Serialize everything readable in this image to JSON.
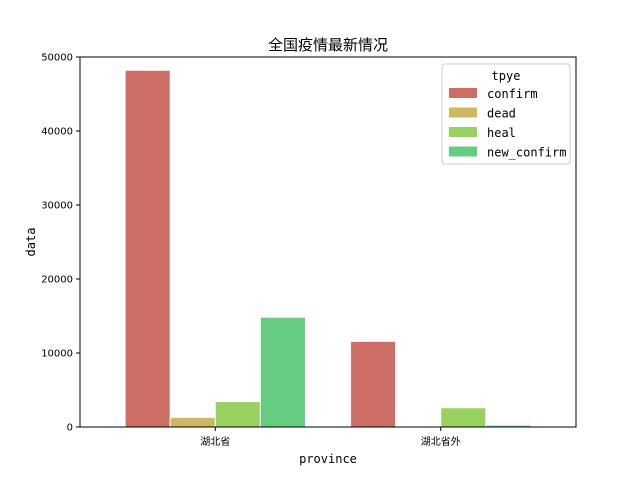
{
  "chart_data": {
    "type": "bar",
    "title": "全国疫情最新情况",
    "xlabel": "province",
    "ylabel": "data",
    "categories": [
      "湖北省",
      "湖北省外"
    ],
    "ylim": [
      0,
      50000
    ],
    "yticks": [
      0,
      10000,
      20000,
      30000,
      40000,
      50000
    ],
    "grid": false,
    "legend": {
      "title": "tpye",
      "placement": "top-right"
    },
    "series": [
      {
        "name": "confirm",
        "color": "#cc6e66",
        "values": [
          48206,
          11574
        ]
      },
      {
        "name": "dead",
        "color": "#cfb95e",
        "values": [
          1310,
          30
        ]
      },
      {
        "name": "heal",
        "color": "#98d15f",
        "values": [
          3441,
          2600
        ]
      },
      {
        "name": "new_confirm",
        "color": "#65cc82",
        "values": [
          14840,
          250
        ]
      }
    ]
  }
}
